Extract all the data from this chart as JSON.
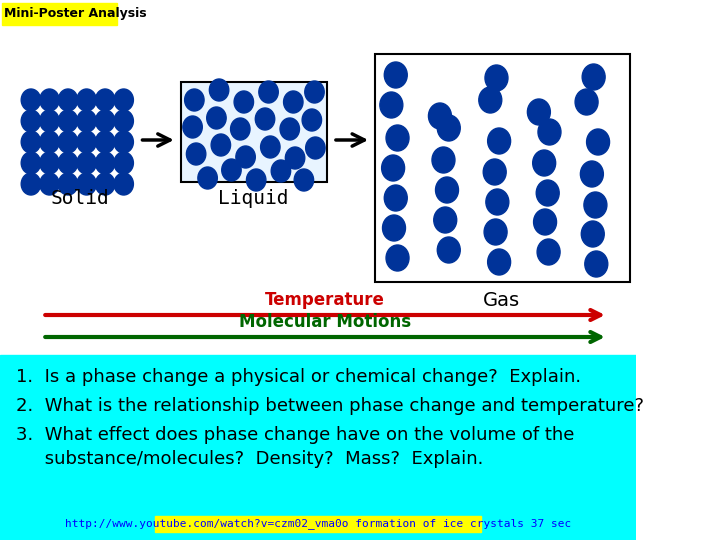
{
  "title": "Mini-Poster Analysis",
  "title_bg": "#FFFF00",
  "title_color": "#000000",
  "title_fontsize": 9,
  "bg_top": "#FFFFFF",
  "bg_bottom": "#00FFFF",
  "molecule_color": "#003399",
  "solid_label": "Solid",
  "liquid_label": "Liquid",
  "gas_label": "Gas",
  "temp_label": "Temperature",
  "temp_color": "#CC0000",
  "motion_label": "Molecular Motions",
  "motion_color": "#006600",
  "question1": "1.  Is a phase change a physical or chemical change?  Explain.",
  "question2": "2.  What is the relationship between phase change and temperature?",
  "question3a": "3.  What effect does phase change have on the volume of the",
  "question3b": "     substance/molecules?  Density?  Mass?  Explain.",
  "link_text": "http://www.youtube.com/watch?v=czm02_vma0o",
  "link_suffix": " formation of ice crystals 37 sec",
  "link_bg": "#FFFF00",
  "question_fontsize": 13,
  "link_fontsize": 8
}
